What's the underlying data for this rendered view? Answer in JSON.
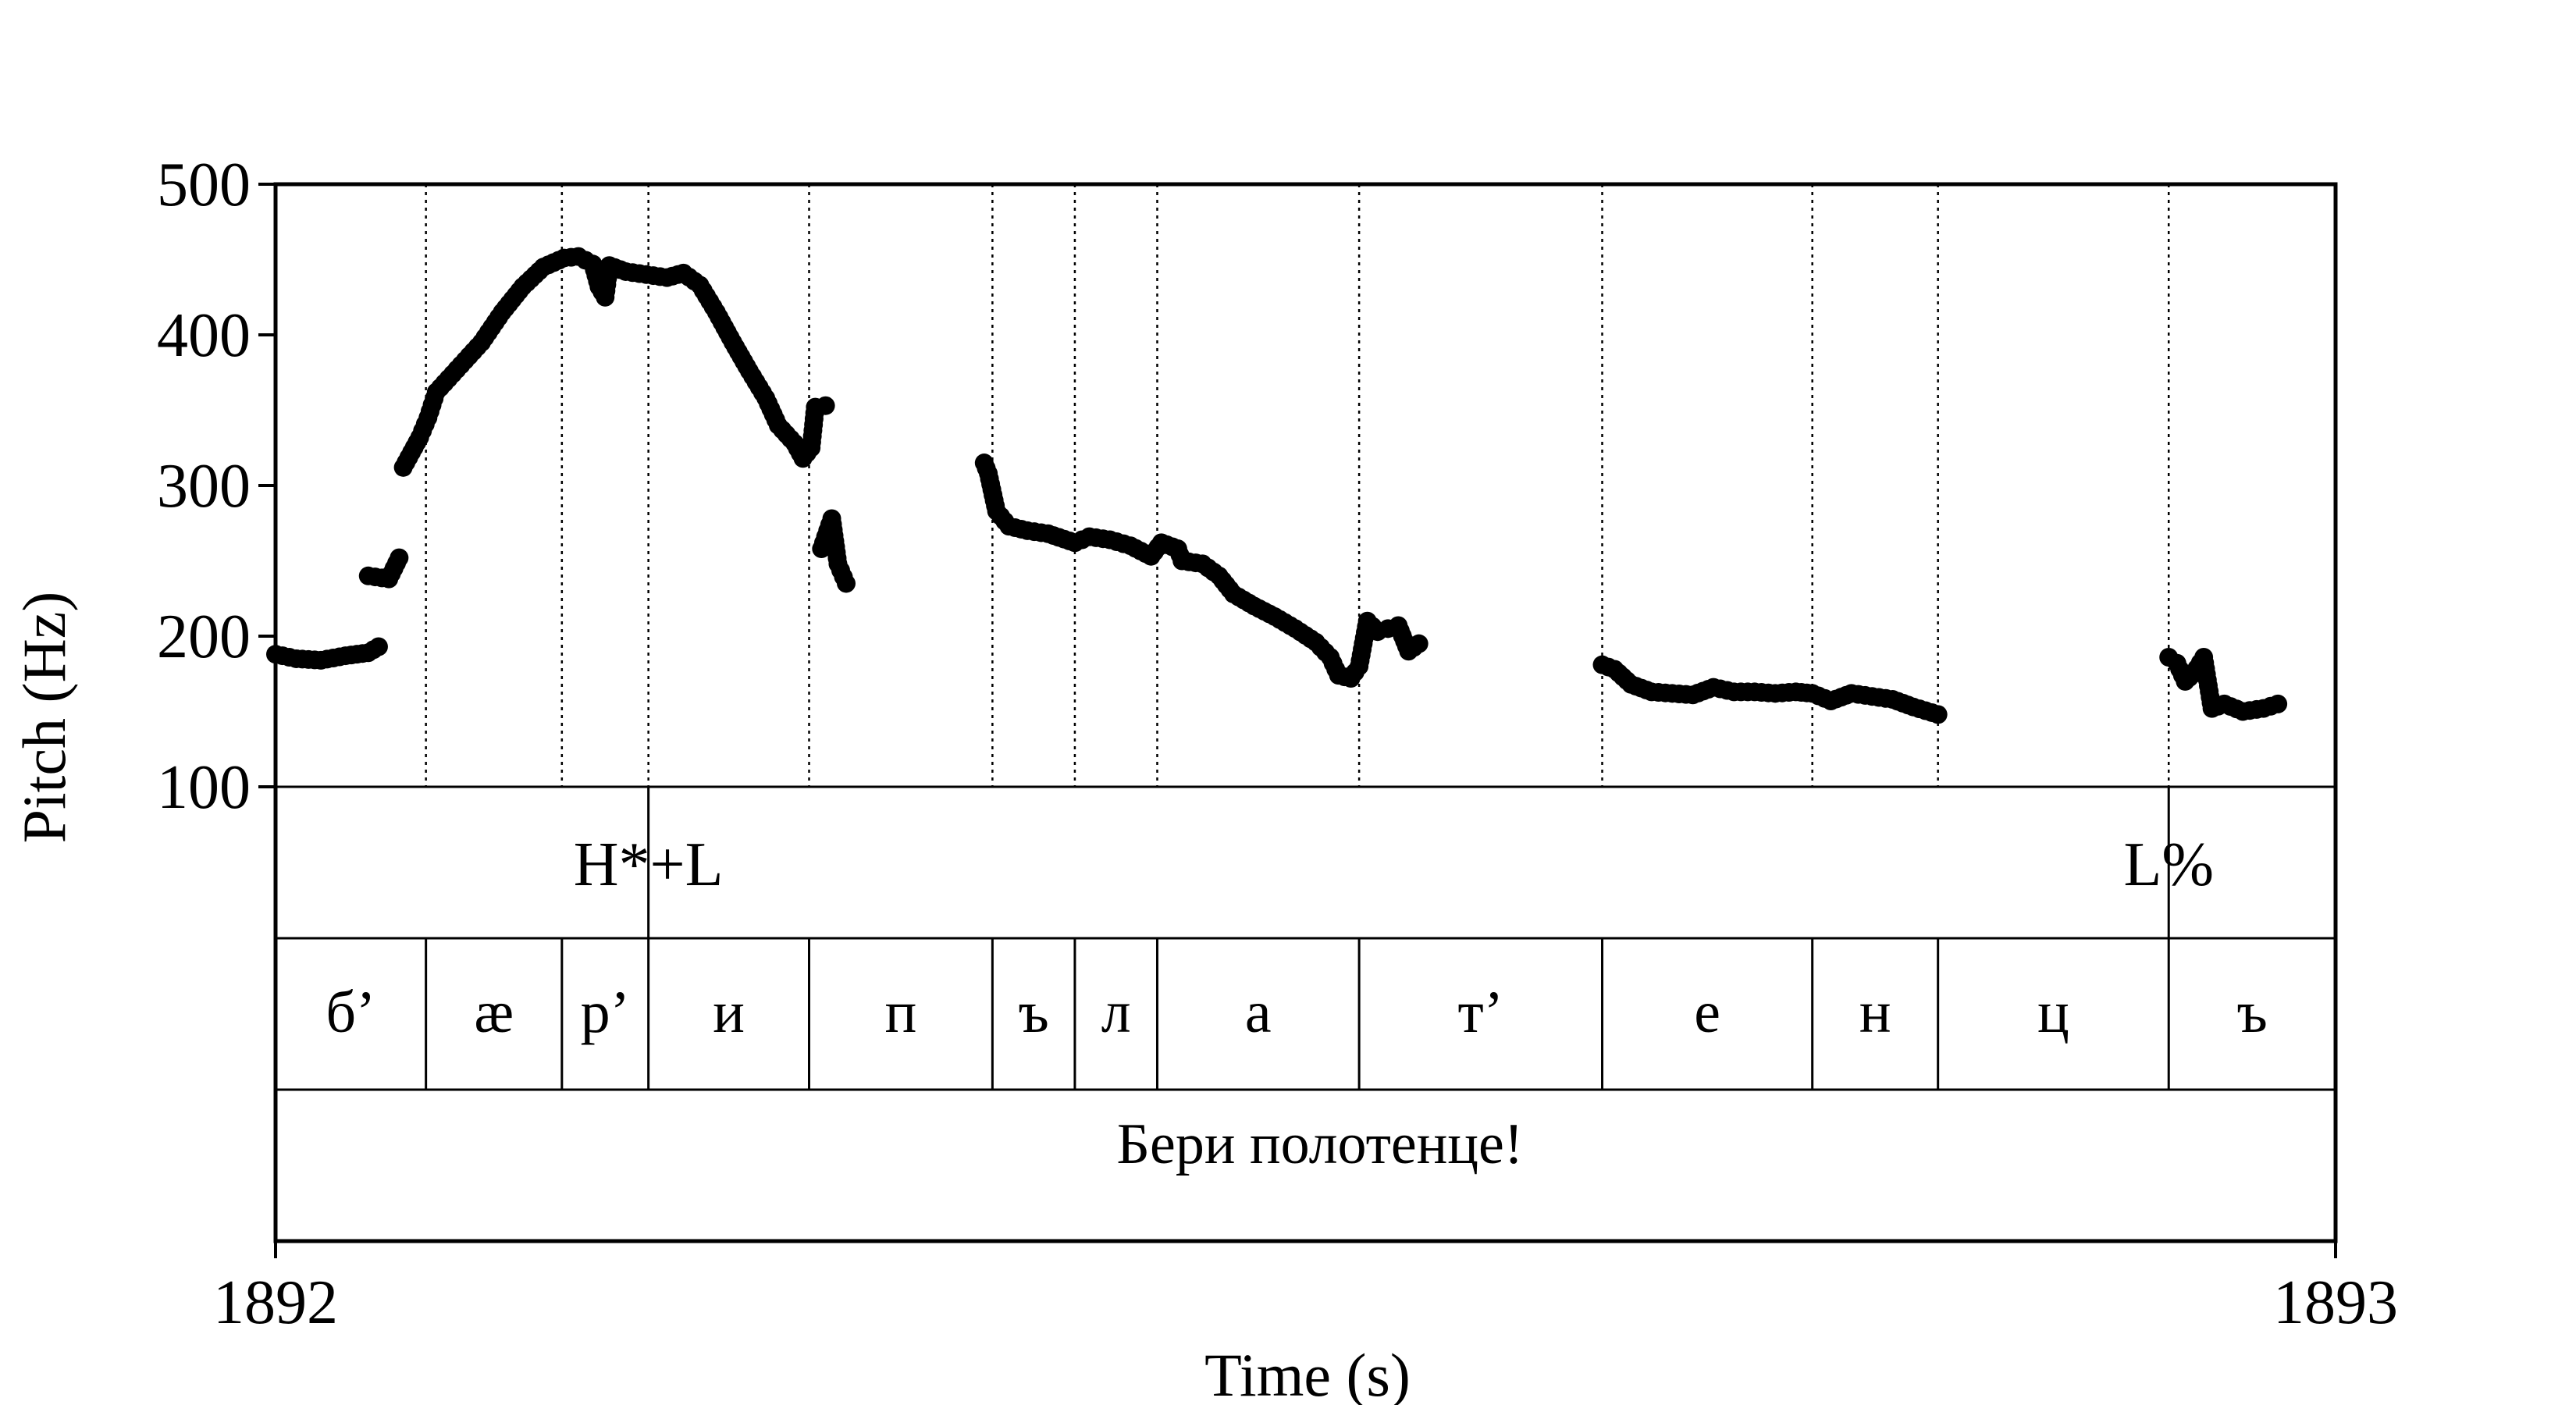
{
  "chart_data": {
    "type": "scatter",
    "xlabel": "Time (s)",
    "ylabel": "Pitch (Hz)",
    "xlim": [
      1892,
      1893
    ],
    "ylim": [
      100,
      500
    ],
    "x_ticks": [
      "1892",
      "1893"
    ],
    "y_ticks": [
      "100",
      "200",
      "300",
      "400",
      "500"
    ],
    "grid": false,
    "tiers": {
      "tone": [
        {
          "label": "H*+L",
          "time": 1892.181
        },
        {
          "label": "L%",
          "time": 1892.919
        }
      ],
      "phones": [
        {
          "label": "б’",
          "start": 1892.0,
          "end": 1892.073
        },
        {
          "label": "æ",
          "start": 1892.073,
          "end": 1892.139
        },
        {
          "label": "р’",
          "start": 1892.139,
          "end": 1892.181
        },
        {
          "label": "и",
          "start": 1892.181,
          "end": 1892.259
        },
        {
          "label": "п",
          "start": 1892.259,
          "end": 1892.348
        },
        {
          "label": "ъ",
          "start": 1892.348,
          "end": 1892.388
        },
        {
          "label": "л",
          "start": 1892.388,
          "end": 1892.428
        },
        {
          "label": "а",
          "start": 1892.428,
          "end": 1892.526
        },
        {
          "label": "т’",
          "start": 1892.526,
          "end": 1892.644
        },
        {
          "label": "е",
          "start": 1892.644,
          "end": 1892.746
        },
        {
          "label": "н",
          "start": 1892.746,
          "end": 1892.807
        },
        {
          "label": "ц",
          "start": 1892.807,
          "end": 1892.919
        },
        {
          "label": "ъ",
          "start": 1892.919,
          "end": 1893.0
        }
      ],
      "sentence": "Бери полотенце!"
    },
    "pitch_segments": [
      [
        [
          1892.0,
          188
        ],
        [
          1892.01,
          185
        ],
        [
          1892.022,
          184
        ],
        [
          1892.034,
          187
        ],
        [
          1892.045,
          189
        ],
        [
          1892.05,
          193
        ],
        [
          1892.045,
          240
        ],
        [
          1892.055,
          238
        ],
        [
          1892.06,
          252
        ],
        [
          1892.062,
          312
        ],
        [
          1892.066,
          322
        ],
        [
          1892.07,
          332
        ],
        [
          1892.074,
          345
        ],
        [
          1892.078,
          362
        ],
        [
          1892.09,
          380
        ],
        [
          1892.1,
          395
        ],
        [
          1892.11,
          415
        ],
        [
          1892.12,
          432
        ],
        [
          1892.13,
          445
        ],
        [
          1892.14,
          451
        ],
        [
          1892.147,
          452
        ],
        [
          1892.154,
          447
        ],
        [
          1892.157,
          432
        ],
        [
          1892.16,
          425
        ],
        [
          1892.162,
          446
        ],
        [
          1892.17,
          442
        ],
        [
          1892.18,
          440
        ],
        [
          1892.19,
          438
        ],
        [
          1892.198,
          441
        ],
        [
          1892.206,
          433
        ],
        [
          1892.214,
          415
        ],
        [
          1892.222,
          395
        ],
        [
          1892.23,
          376
        ],
        [
          1892.238,
          358
        ],
        [
          1892.244,
          340
        ],
        [
          1892.252,
          328
        ],
        [
          1892.256,
          318
        ],
        [
          1892.26,
          325
        ],
        [
          1892.262,
          352
        ],
        [
          1892.267,
          353
        ],
        [
          1892.265,
          258
        ],
        [
          1892.27,
          278
        ],
        [
          1892.273,
          248
        ],
        [
          1892.277,
          235
        ]
      ],
      [
        [
          1892.344,
          315
        ],
        [
          1892.346,
          308
        ],
        [
          1892.35,
          283
        ],
        [
          1892.356,
          273
        ],
        [
          1892.365,
          270
        ],
        [
          1892.375,
          268
        ],
        [
          1892.388,
          262
        ],
        [
          1892.395,
          266
        ],
        [
          1892.405,
          264
        ],
        [
          1892.415,
          260
        ],
        [
          1892.425,
          253
        ],
        [
          1892.43,
          262
        ],
        [
          1892.438,
          258
        ],
        [
          1892.44,
          250
        ],
        [
          1892.45,
          248
        ],
        [
          1892.458,
          240
        ],
        [
          1892.465,
          228
        ],
        [
          1892.475,
          220
        ],
        [
          1892.485,
          213
        ],
        [
          1892.495,
          205
        ],
        [
          1892.505,
          196
        ],
        [
          1892.512,
          186
        ],
        [
          1892.516,
          174
        ],
        [
          1892.522,
          172
        ],
        [
          1892.526,
          180
        ],
        [
          1892.53,
          210
        ],
        [
          1892.535,
          203
        ],
        [
          1892.54,
          205
        ],
        [
          1892.545,
          207
        ],
        [
          1892.55,
          190
        ],
        [
          1892.555,
          195
        ]
      ],
      [
        [
          1892.644,
          181
        ],
        [
          1892.65,
          178
        ],
        [
          1892.658,
          168
        ],
        [
          1892.668,
          163
        ],
        [
          1892.678,
          162
        ],
        [
          1892.688,
          161
        ],
        [
          1892.698,
          166
        ],
        [
          1892.708,
          163
        ],
        [
          1892.718,
          163
        ],
        [
          1892.728,
          162
        ],
        [
          1892.738,
          163
        ],
        [
          1892.746,
          162
        ],
        [
          1892.755,
          157
        ],
        [
          1892.765,
          162
        ],
        [
          1892.775,
          160
        ],
        [
          1892.785,
          158
        ],
        [
          1892.795,
          153
        ],
        [
          1892.807,
          148
        ]
      ],
      [
        [
          1892.919,
          186
        ],
        [
          1892.923,
          182
        ],
        [
          1892.927,
          170
        ],
        [
          1892.931,
          175
        ],
        [
          1892.936,
          186
        ],
        [
          1892.94,
          152
        ],
        [
          1892.946,
          155
        ],
        [
          1892.955,
          150
        ],
        [
          1892.965,
          152
        ],
        [
          1892.972,
          155
        ]
      ]
    ]
  }
}
